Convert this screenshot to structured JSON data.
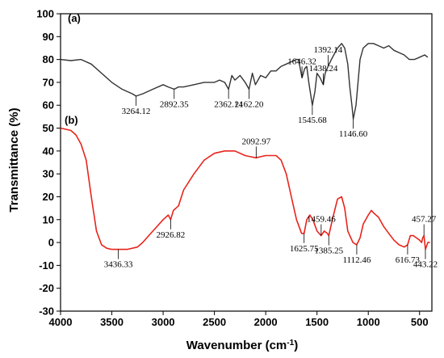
{
  "chart_data": {
    "type": "line",
    "title": "",
    "xlabel": "Wavenumber (cm",
    "xlabel_sup": "-1",
    "xlabel_close": ")",
    "ylabel": "Transmittance (%)",
    "xlim": [
      4000,
      380
    ],
    "ylim": [
      -30,
      100
    ],
    "x_ticks": [
      4000,
      3500,
      3000,
      2500,
      2000,
      1500,
      1000,
      500
    ],
    "y_ticks": [
      -30,
      -20,
      -10,
      0,
      10,
      20,
      30,
      40,
      50,
      60,
      70,
      80,
      90,
      100
    ],
    "grid": false,
    "series": [
      {
        "name": "(a)",
        "color": "#333333",
        "points": [
          [
            4000,
            80
          ],
          [
            3900,
            79.5
          ],
          [
            3800,
            80
          ],
          [
            3700,
            78
          ],
          [
            3600,
            74
          ],
          [
            3500,
            70
          ],
          [
            3400,
            67
          ],
          [
            3300,
            65
          ],
          [
            3264.12,
            64
          ],
          [
            3200,
            65
          ],
          [
            3100,
            67
          ],
          [
            3000,
            69
          ],
          [
            2950,
            68
          ],
          [
            2892.35,
            67
          ],
          [
            2850,
            68
          ],
          [
            2800,
            68
          ],
          [
            2700,
            69
          ],
          [
            2600,
            70
          ],
          [
            2500,
            70
          ],
          [
            2450,
            71
          ],
          [
            2400,
            70
          ],
          [
            2362.14,
            67
          ],
          [
            2330,
            73
          ],
          [
            2300,
            71
          ],
          [
            2250,
            73
          ],
          [
            2200,
            70
          ],
          [
            2162.2,
            67
          ],
          [
            2130,
            74
          ],
          [
            2100,
            69
          ],
          [
            2050,
            73
          ],
          [
            2000,
            72
          ],
          [
            1950,
            75
          ],
          [
            1900,
            75
          ],
          [
            1850,
            77
          ],
          [
            1800,
            78
          ],
          [
            1750,
            79
          ],
          [
            1700,
            80
          ],
          [
            1680,
            80
          ],
          [
            1646.32,
            72
          ],
          [
            1620,
            76
          ],
          [
            1600,
            77
          ],
          [
            1580,
            70
          ],
          [
            1545.68,
            60
          ],
          [
            1520,
            66
          ],
          [
            1500,
            74
          ],
          [
            1470,
            72
          ],
          [
            1438.24,
            69
          ],
          [
            1420,
            74
          ],
          [
            1392.14,
            77
          ],
          [
            1360,
            80
          ],
          [
            1300,
            85
          ],
          [
            1260,
            87
          ],
          [
            1230,
            85
          ],
          [
            1200,
            78
          ],
          [
            1180,
            68
          ],
          [
            1160,
            60
          ],
          [
            1146.6,
            54
          ],
          [
            1120,
            60
          ],
          [
            1100,
            70
          ],
          [
            1080,
            80
          ],
          [
            1050,
            85
          ],
          [
            1000,
            87
          ],
          [
            950,
            87
          ],
          [
            900,
            86
          ],
          [
            850,
            85
          ],
          [
            800,
            86
          ],
          [
            750,
            84
          ],
          [
            700,
            83
          ],
          [
            650,
            82
          ],
          [
            600,
            80
          ],
          [
            550,
            80
          ],
          [
            500,
            81
          ],
          [
            450,
            82
          ],
          [
            420,
            81
          ]
        ]
      },
      {
        "name": "(b)",
        "color": "#e8241c",
        "points": [
          [
            4000,
            50
          ],
          [
            3900,
            49
          ],
          [
            3850,
            47
          ],
          [
            3800,
            43
          ],
          [
            3750,
            36
          ],
          [
            3700,
            20
          ],
          [
            3650,
            5
          ],
          [
            3600,
            -1
          ],
          [
            3550,
            -2.5
          ],
          [
            3500,
            -3
          ],
          [
            3436.33,
            -3
          ],
          [
            3350,
            -3
          ],
          [
            3250,
            -2
          ],
          [
            3200,
            0
          ],
          [
            3100,
            5
          ],
          [
            3000,
            10
          ],
          [
            2950,
            12
          ],
          [
            2926.82,
            10
          ],
          [
            2900,
            14
          ],
          [
            2850,
            16
          ],
          [
            2800,
            23
          ],
          [
            2700,
            30
          ],
          [
            2600,
            36
          ],
          [
            2500,
            39
          ],
          [
            2400,
            40
          ],
          [
            2300,
            40
          ],
          [
            2200,
            38
          ],
          [
            2150,
            37.5
          ],
          [
            2092.97,
            37
          ],
          [
            2050,
            37.5
          ],
          [
            2000,
            38
          ],
          [
            1950,
            38
          ],
          [
            1900,
            38
          ],
          [
            1850,
            36
          ],
          [
            1800,
            30
          ],
          [
            1750,
            20
          ],
          [
            1700,
            10
          ],
          [
            1650,
            4
          ],
          [
            1625.75,
            4
          ],
          [
            1600,
            10
          ],
          [
            1570,
            12
          ],
          [
            1540,
            10
          ],
          [
            1500,
            5
          ],
          [
            1459.46,
            3
          ],
          [
            1430,
            5
          ],
          [
            1400,
            4
          ],
          [
            1385.25,
            3
          ],
          [
            1350,
            10
          ],
          [
            1300,
            19
          ],
          [
            1260,
            20
          ],
          [
            1230,
            15
          ],
          [
            1200,
            5
          ],
          [
            1150,
            0
          ],
          [
            1112.46,
            -1
          ],
          [
            1080,
            2
          ],
          [
            1050,
            8
          ],
          [
            1000,
            12
          ],
          [
            970,
            14
          ],
          [
            950,
            13
          ],
          [
            900,
            11
          ],
          [
            850,
            7
          ],
          [
            800,
            4
          ],
          [
            750,
            1
          ],
          [
            700,
            -1
          ],
          [
            650,
            -2
          ],
          [
            616.73,
            -1
          ],
          [
            590,
            3
          ],
          [
            560,
            3
          ],
          [
            530,
            2
          ],
          [
            500,
            1
          ],
          [
            480,
            0
          ],
          [
            470,
            2
          ],
          [
            457.27,
            3
          ],
          [
            450,
            0
          ],
          [
            443.22,
            -3
          ],
          [
            420,
            0
          ],
          [
            400,
            0
          ]
        ]
      }
    ],
    "panel_labels": [
      "(a)",
      "(b)"
    ],
    "annotations_a": [
      "3264.12",
      "2892.35",
      "2362.14",
      "2162.20",
      "1646.32",
      "1545.68",
      "1438.24",
      "1392.14",
      "1146.60"
    ],
    "annotations_b": [
      "3436.33",
      "2926.82",
      "2092.97",
      "1625.75",
      "1459.46",
      "1385.25",
      "1112.46",
      "616.73",
      "457.27",
      "443.22"
    ]
  }
}
